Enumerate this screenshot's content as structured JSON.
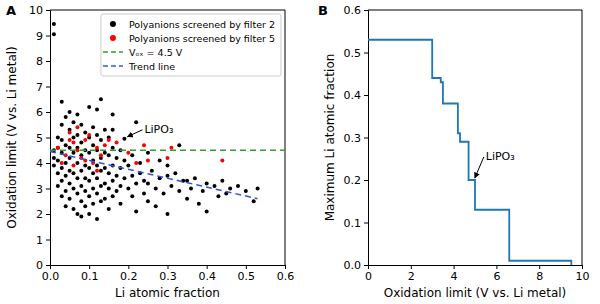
{
  "chart_data": [
    {
      "type": "scatter",
      "title": "A",
      "xlabel": "Li atomic fraction",
      "ylabel": "Oxidation limit (V vs. Li metal)",
      "xlim": [
        0,
        0.6
      ],
      "ylim": [
        0,
        10
      ],
      "xticks": [
        {
          "value": 0,
          "label": "0.0"
        },
        {
          "value": 0.1,
          "label": "0.1"
        },
        {
          "value": 0.2,
          "label": "0.2"
        },
        {
          "value": 0.3,
          "label": "0.3"
        },
        {
          "value": 0.4,
          "label": "0.4"
        },
        {
          "value": 0.5,
          "label": "0.5"
        },
        {
          "value": 0.6,
          "label": "0.6"
        }
      ],
      "yticks": [
        0,
        1,
        2,
        3,
        4,
        5,
        6,
        7,
        8,
        9,
        10
      ],
      "legend": "upper right",
      "series": [
        {
          "name": "Polyanions screened by filter 2",
          "type": "scatter",
          "color": "#000000",
          "x": [
            0.01,
            0.01,
            0.01,
            0.01,
            0.01,
            0.02,
            0.02,
            0.02,
            0.02,
            0.02,
            0.03,
            0.03,
            0.03,
            0.03,
            0.03,
            0.03,
            0.03,
            0.04,
            0.04,
            0.04,
            0.04,
            0.04,
            0.04,
            0.05,
            0.05,
            0.05,
            0.05,
            0.05,
            0.05,
            0.05,
            0.06,
            0.06,
            0.06,
            0.06,
            0.06,
            0.06,
            0.07,
            0.07,
            0.07,
            0.07,
            0.07,
            0.07,
            0.07,
            0.08,
            0.08,
            0.08,
            0.08,
            0.08,
            0.08,
            0.08,
            0.09,
            0.09,
            0.09,
            0.09,
            0.09,
            0.09,
            0.1,
            0.1,
            0.1,
            0.1,
            0.1,
            0.1,
            0.1,
            0.11,
            0.11,
            0.11,
            0.11,
            0.11,
            0.11,
            0.12,
            0.12,
            0.12,
            0.12,
            0.12,
            0.12,
            0.12,
            0.13,
            0.13,
            0.13,
            0.13,
            0.13,
            0.13,
            0.14,
            0.14,
            0.14,
            0.14,
            0.14,
            0.15,
            0.15,
            0.15,
            0.15,
            0.15,
            0.16,
            0.16,
            0.16,
            0.16,
            0.16,
            0.16,
            0.17,
            0.17,
            0.17,
            0.18,
            0.18,
            0.18,
            0.18,
            0.19,
            0.19,
            0.19,
            0.2,
            0.2,
            0.21,
            0.21,
            0.21,
            0.22,
            0.22,
            0.22,
            0.23,
            0.23,
            0.24,
            0.24,
            0.25,
            0.25,
            0.25,
            0.26,
            0.27,
            0.27,
            0.28,
            0.28,
            0.29,
            0.3,
            0.3,
            0.3,
            0.31,
            0.32,
            0.33,
            0.33,
            0.34,
            0.35,
            0.35,
            0.36,
            0.37,
            0.38,
            0.39,
            0.4,
            0.4,
            0.42,
            0.43,
            0.44,
            0.45,
            0.46,
            0.48,
            0.5,
            0.52,
            0.53
          ],
          "values": [
            9.45,
            9.05,
            4.5,
            4.2,
            3.9,
            5.0,
            4.6,
            4.1,
            3.6,
            3.1,
            6.4,
            5.5,
            4.9,
            4.4,
            3.8,
            3.3,
            2.7,
            5.8,
            4.7,
            4.0,
            3.5,
            2.9,
            2.3,
            6.0,
            5.3,
            4.6,
            4.2,
            3.7,
            3.2,
            2.6,
            5.6,
            5.0,
            4.4,
            3.6,
            3.0,
            2.2,
            5.9,
            5.1,
            4.6,
            4.0,
            3.4,
            2.8,
            2.0,
            5.5,
            4.8,
            4.3,
            3.7,
            3.1,
            2.5,
            1.9,
            5.2,
            4.5,
            3.9,
            3.4,
            2.9,
            2.3,
            6.2,
            5.0,
            4.4,
            3.8,
            3.3,
            2.7,
            2.0,
            5.4,
            4.7,
            4.1,
            3.6,
            3.0,
            2.4,
            6.1,
            5.1,
            4.5,
            3.9,
            3.4,
            2.8,
            1.8,
            6.5,
            4.9,
            4.2,
            3.7,
            3.1,
            2.5,
            5.3,
            4.4,
            3.8,
            3.2,
            2.6,
            5.0,
            4.3,
            3.6,
            3.0,
            2.2,
            5.9,
            5.3,
            4.6,
            3.9,
            3.3,
            2.7,
            4.2,
            3.5,
            2.9,
            4.5,
            3.8,
            3.1,
            2.4,
            4.95,
            4.1,
            3.4,
            3.9,
            3.0,
            4.3,
            3.5,
            2.7,
            5.6,
            3.2,
            2.1,
            4.0,
            3.6,
            3.3,
            2.8,
            4.4,
            3.2,
            2.5,
            3.7,
            3.0,
            2.3,
            4.1,
            3.4,
            2.8,
            3.9,
            3.5,
            2.0,
            3.1,
            3.6,
            4.7,
            2.9,
            3.3,
            3.3,
            2.6,
            3.0,
            3.4,
            2.4,
            2.9,
            3.2,
            2.1,
            3.1,
            2.7,
            3.3,
            2.8,
            3.0,
            3.1,
            2.9,
            2.5,
            3.0
          ]
        },
        {
          "name": "Polyanions screened by filter 5",
          "type": "scatter",
          "color": "#ff0000",
          "x": [
            0.02,
            0.03,
            0.04,
            0.05,
            0.05,
            0.06,
            0.06,
            0.07,
            0.07,
            0.08,
            0.09,
            0.09,
            0.1,
            0.11,
            0.12,
            0.12,
            0.13,
            0.14,
            0.15,
            0.17,
            0.2,
            0.22,
            0.24,
            0.25,
            0.3,
            0.31,
            0.44
          ],
          "values": [
            4.6,
            4.0,
            4.3,
            5.2,
            4.9,
            4.8,
            3.9,
            5.4,
            4.5,
            4.2,
            4.9,
            4.1,
            5.1,
            4.0,
            4.6,
            3.7,
            4.3,
            4.7,
            4.9,
            4.8,
            4.4,
            4.0,
            4.7,
            4.1,
            4.2,
            4.6,
            4.1
          ]
        },
        {
          "name": "Vₒₓ = 4.5 V",
          "type": "line",
          "color": "#2ca02c",
          "line_style": "dashed",
          "x": [
            0,
            0.6
          ],
          "values": [
            4.5,
            4.5
          ]
        },
        {
          "name": "Trend line",
          "type": "line",
          "color": "#3355dd",
          "line_style": "dashed",
          "x": [
            0,
            0.53
          ],
          "values": [
            4.45,
            2.6
          ]
        }
      ],
      "annotations": [
        {
          "text": "LiPO₃",
          "x": 0.19,
          "y": 4.95
        }
      ]
    },
    {
      "type": "step",
      "title": "B",
      "xlabel": "Oxidation limit (V vs. Li metal)",
      "ylabel": "Maximum Li atomic fraction",
      "xlim": [
        0,
        10
      ],
      "ylim": [
        0,
        0.6
      ],
      "xticks": [
        0,
        2,
        4,
        6,
        8,
        10
      ],
      "yticks": [
        {
          "value": 0,
          "label": "0.0"
        },
        {
          "value": 0.1,
          "label": "0.1"
        },
        {
          "value": 0.2,
          "label": "0.2"
        },
        {
          "value": 0.3,
          "label": "0.3"
        },
        {
          "value": 0.4,
          "label": "0.4"
        },
        {
          "value": 0.5,
          "label": "0.5"
        },
        {
          "value": 0.6,
          "label": "0.6"
        }
      ],
      "series": [
        {
          "color": "#1f77b4",
          "line_style": "solid",
          "x": [
            0,
            3.0,
            3.4,
            3.5,
            4.2,
            4.3,
            4.7,
            5.0,
            6.6,
            9.5
          ],
          "values": [
            0.53,
            0.44,
            0.43,
            0.38,
            0.31,
            0.29,
            0.2,
            0.13,
            0.01,
            0.0
          ]
        }
      ],
      "annotations": [
        {
          "text": "LiPO₃",
          "x": 4.85,
          "y": 0.2
        }
      ]
    }
  ]
}
